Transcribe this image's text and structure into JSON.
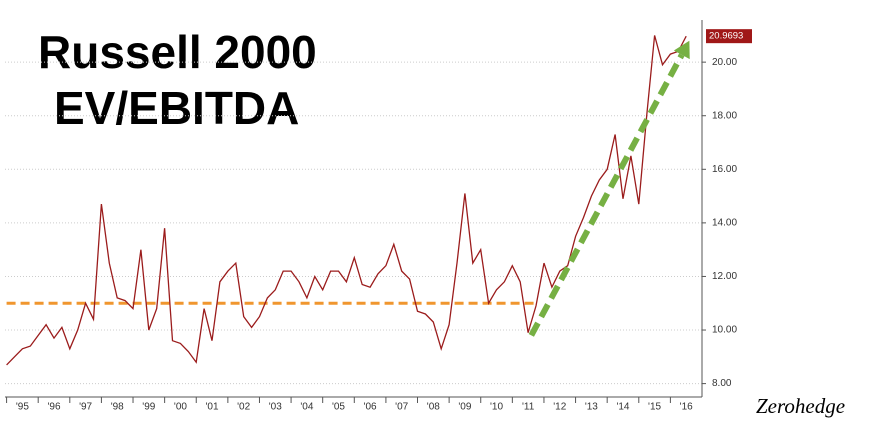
{
  "chart_data": {
    "type": "line",
    "title_lines": [
      "Russell 2000",
      "EV/EBITDA"
    ],
    "source": "Zerohedge",
    "last_value_label": "20.9693",
    "x": [
      1995,
      1995.25,
      1995.5,
      1995.75,
      1996,
      1996.25,
      1996.5,
      1996.75,
      1997,
      1997.25,
      1997.5,
      1997.75,
      1998,
      1998.25,
      1998.5,
      1998.75,
      1999,
      1999.25,
      1999.5,
      1999.75,
      2000,
      2000.25,
      2000.5,
      2000.75,
      2001,
      2001.25,
      2001.5,
      2001.75,
      2002,
      2002.25,
      2002.5,
      2002.75,
      2003,
      2003.25,
      2003.5,
      2003.75,
      2004,
      2004.25,
      2004.5,
      2004.75,
      2005,
      2005.25,
      2005.5,
      2005.75,
      2006,
      2006.25,
      2006.5,
      2006.75,
      2007,
      2007.25,
      2007.5,
      2007.75,
      2008,
      2008.25,
      2008.5,
      2008.75,
      2009,
      2009.25,
      2009.5,
      2009.75,
      2010,
      2010.25,
      2010.5,
      2010.75,
      2011,
      2011.25,
      2011.5,
      2011.75,
      2012,
      2012.25,
      2012.5,
      2012.75,
      2013,
      2013.25,
      2013.5,
      2013.75,
      2014,
      2014.25,
      2014.5,
      2014.75,
      2015,
      2015.25,
      2015.5,
      2015.75,
      2016,
      2016.25,
      2016.5
    ],
    "series": [
      {
        "color": "#9b1c1c",
        "values": [
          8.7,
          9.0,
          9.3,
          9.4,
          9.8,
          10.2,
          9.7,
          10.1,
          9.3,
          10.0,
          11.0,
          10.4,
          14.7,
          12.5,
          11.2,
          11.1,
          10.8,
          13.0,
          10.0,
          10.8,
          13.8,
          9.6,
          9.5,
          9.2,
          8.8,
          10.8,
          9.6,
          11.8,
          12.2,
          12.5,
          10.5,
          10.1,
          10.5,
          11.2,
          11.5,
          12.2,
          12.2,
          11.8,
          11.2,
          12.0,
          11.5,
          12.2,
          12.2,
          11.8,
          12.7,
          11.7,
          11.6,
          12.1,
          12.4,
          13.2,
          12.2,
          11.9,
          10.7,
          10.6,
          10.3,
          9.3,
          10.2,
          12.5,
          15.1,
          12.5,
          13.0,
          11.0,
          11.5,
          11.8,
          12.4,
          11.8,
          9.9,
          10.9,
          12.5,
          11.6,
          12.2,
          12.4,
          13.5,
          14.2,
          15.0,
          15.6,
          16.0,
          17.3,
          14.9,
          16.5,
          14.7,
          18.0,
          21.0,
          19.9,
          20.3,
          20.4,
          20.97
        ]
      }
    ],
    "xlim": [
      1994.95,
      2017.0
    ],
    "xticks": [
      {
        "value": 1995.5,
        "label": "'95"
      },
      {
        "value": 1996.5,
        "label": "'96"
      },
      {
        "value": 1997.5,
        "label": "'97"
      },
      {
        "value": 1998.5,
        "label": "'98"
      },
      {
        "value": 1999.5,
        "label": "'99"
      },
      {
        "value": 2000.5,
        "label": "'00"
      },
      {
        "value": 2001.5,
        "label": "'01"
      },
      {
        "value": 2002.5,
        "label": "'02"
      },
      {
        "value": 2003.5,
        "label": "'03"
      },
      {
        "value": 2004.5,
        "label": "'04"
      },
      {
        "value": 2005.5,
        "label": "'05"
      },
      {
        "value": 2006.5,
        "label": "'06"
      },
      {
        "value": 2007.5,
        "label": "'07"
      },
      {
        "value": 2008.5,
        "label": "'08"
      },
      {
        "value": 2009.5,
        "label": "'09"
      },
      {
        "value": 2010.5,
        "label": "'10"
      },
      {
        "value": 2011.5,
        "label": "'11"
      },
      {
        "value": 2012.5,
        "label": "'12"
      },
      {
        "value": 2013.5,
        "label": "'13"
      },
      {
        "value": 2014.5,
        "label": "'14"
      },
      {
        "value": 2015.5,
        "label": "'15"
      },
      {
        "value": 2016.5,
        "label": "'16"
      }
    ],
    "ylim": [
      7.5,
      21.2
    ],
    "yticks": [
      {
        "value": 8,
        "label": "8.00"
      },
      {
        "value": 10,
        "label": "10.00"
      },
      {
        "value": 12,
        "label": "12.00"
      },
      {
        "value": 14,
        "label": "14.00"
      },
      {
        "value": 16,
        "label": "16.00"
      },
      {
        "value": 18,
        "label": "18.00"
      },
      {
        "value": 20,
        "label": "20.00"
      }
    ],
    "grid": true,
    "reference_line": {
      "value": 11,
      "x": [
        1995,
        2011.8
      ],
      "color": "#f0962e"
    },
    "trend_arrow": {
      "x": [
        2011.6,
        2016.6
      ],
      "y": [
        9.8,
        20.8
      ],
      "color": "#76b043"
    }
  }
}
